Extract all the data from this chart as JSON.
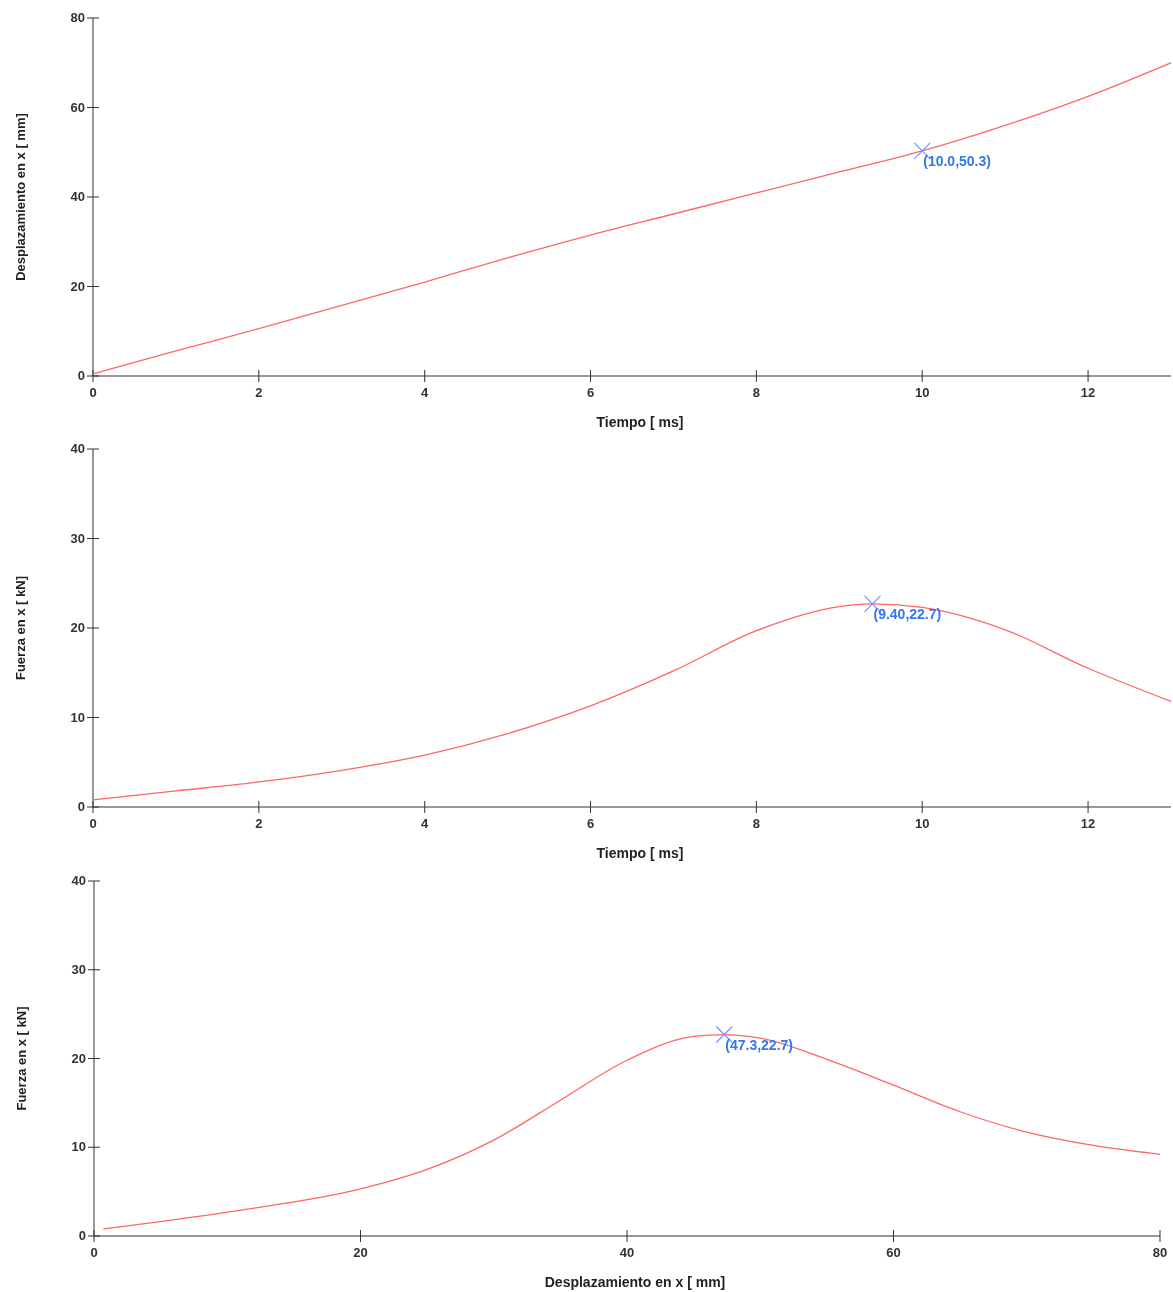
{
  "chart_data": [
    {
      "type": "line",
      "xlabel": "Tiempo [ ms]",
      "ylabel": "Desplazamiento en x [ mm]",
      "xlim": [
        0,
        13
      ],
      "ylim": [
        0,
        80
      ],
      "xticks": [
        0,
        2,
        4,
        6,
        8,
        10,
        12
      ],
      "yticks": [
        0,
        20,
        40,
        60,
        80
      ],
      "grid": false,
      "series": [
        {
          "color": "#ff6666",
          "x": [
            0,
            1,
            2,
            3,
            4,
            5,
            6,
            7,
            8,
            9,
            10,
            11,
            12,
            13
          ],
          "values": [
            0.5,
            5.6,
            10.6,
            15.8,
            21,
            26.4,
            31.5,
            36.2,
            40.9,
            45.6,
            50.3,
            56,
            62.5,
            70
          ]
        },
        {
          "type": "scatter",
          "marker": "cross",
          "color": "#6699ff",
          "x": [
            10
          ],
          "values": [
            50.3
          ]
        }
      ],
      "annotations": [
        {
          "text": "(10.0,50.3)",
          "x": 10,
          "y": 50.3
        }
      ]
    },
    {
      "type": "line",
      "xlabel": "Tiempo [ ms]",
      "ylabel": "Fuerza en x [ kN]",
      "xlim": [
        0,
        13
      ],
      "ylim": [
        0,
        40
      ],
      "xticks": [
        0,
        2,
        4,
        6,
        8,
        10,
        12
      ],
      "yticks": [
        0,
        10,
        20,
        30,
        40
      ],
      "grid": false,
      "series": [
        {
          "color": "#ff6666",
          "x": [
            0,
            1,
            2,
            3,
            4,
            5,
            6,
            7,
            8,
            9,
            9.4,
            10,
            11,
            12,
            13
          ],
          "values": [
            0.8,
            1.8,
            2.8,
            4.1,
            5.8,
            8.2,
            11.3,
            15.2,
            19.7,
            22.4,
            22.7,
            22.3,
            19.8,
            15.5,
            11.8
          ]
        },
        {
          "type": "scatter",
          "marker": "cross",
          "color": "#6699ff",
          "x": [
            9.4
          ],
          "values": [
            22.7
          ]
        }
      ],
      "annotations": [
        {
          "text": "(9.40,22.7)",
          "x": 9.4,
          "y": 22.7
        }
      ]
    },
    {
      "type": "line",
      "xlabel": "Desplazamiento en x [ mm]",
      "ylabel": "Fuerza en x [ kN]",
      "xlim": [
        0,
        80
      ],
      "ylim": [
        0,
        40
      ],
      "xticks": [
        0,
        20,
        40,
        60,
        80
      ],
      "yticks": [
        0,
        10,
        20,
        30,
        40
      ],
      "grid": false,
      "series": [
        {
          "color": "#ff6666",
          "x": [
            0.7,
            10,
            20,
            25,
            30,
            35,
            40,
            45,
            47.3,
            50,
            55,
            60,
            65,
            70,
            75,
            80
          ],
          "values": [
            0.8,
            2.7,
            5.3,
            7.5,
            10.8,
            15.3,
            19.8,
            22.5,
            22.7,
            22.3,
            19.9,
            17,
            14,
            11.7,
            10.2,
            9.2
          ]
        },
        {
          "type": "scatter",
          "marker": "cross",
          "color": "#6699ff",
          "x": [
            47.3
          ],
          "values": [
            22.7
          ]
        }
      ],
      "annotations": [
        {
          "text": "(47.3,22.7)",
          "x": 47.3,
          "y": 22.7
        }
      ]
    }
  ]
}
